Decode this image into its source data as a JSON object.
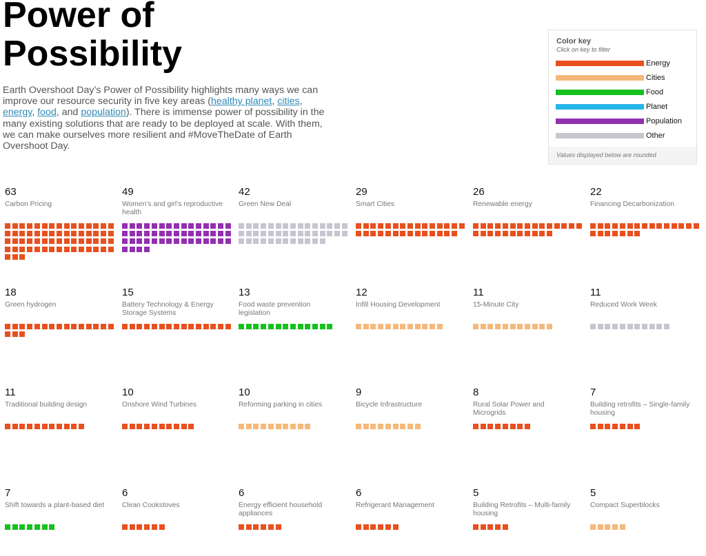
{
  "header": {
    "title": "Power of Possibility",
    "intro_before": "Earth Overshoot Day’s Power of Possibility highlights many ways we can improve our resource security in five key areas (",
    "links": [
      "healthy planet",
      "cities",
      "energy",
      "food",
      "population"
    ],
    "sep1": ", ",
    "sep2": ", ",
    "sep3": ", ",
    "sep4": ", and ",
    "intro_after": "). There is immense power of possibility in the many existing solutions that are ready to be deployed at scale. With them, we can make ourselves more resilient and #MoveTheDate of Earth Overshoot Day."
  },
  "color_key": {
    "title": "Color key",
    "subtitle": "Click on key to filter",
    "footnote": "Values displayed below are rounded",
    "items": [
      {
        "label": "Energy",
        "color": "#e8501e"
      },
      {
        "label": "Cities",
        "color": "#f5b87a"
      },
      {
        "label": "Food",
        "color": "#16c11d"
      },
      {
        "label": "Planet",
        "color": "#27b5e8"
      },
      {
        "label": "Population",
        "color": "#9230b0"
      },
      {
        "label": "Other",
        "color": "#c6c5d0"
      }
    ]
  },
  "chart_data": {
    "type": "waffle",
    "title": "Power of Possibility",
    "unit_note": "Values displayed below are rounded",
    "legend": [
      "Energy",
      "Cities",
      "Food",
      "Planet",
      "Population",
      "Other"
    ],
    "legend_position": "top-right",
    "solutions": [
      {
        "value": 63,
        "label": "Carbon Pricing",
        "category": "Energy"
      },
      {
        "value": 49,
        "label": "Women’s and girl’s reproductive health",
        "category": "Population"
      },
      {
        "value": 42,
        "label": "Green New Deal",
        "category": "Other"
      },
      {
        "value": 29,
        "label": "Smart Cities",
        "category": "Energy"
      },
      {
        "value": 26,
        "label": "Renewable energy",
        "category": "Energy"
      },
      {
        "value": 22,
        "label": "Financing Decarbonization",
        "category": "Energy"
      },
      {
        "value": 18,
        "label": "Green hydrogen",
        "category": "Energy"
      },
      {
        "value": 15,
        "label": "Battery Technology & Energy Storage Systems",
        "category": "Energy"
      },
      {
        "value": 13,
        "label": "Food waste prevention legislation",
        "category": "Food"
      },
      {
        "value": 12,
        "label": "Infill Housing Development",
        "category": "Cities"
      },
      {
        "value": 11,
        "label": "15-Minute City",
        "category": "Cities"
      },
      {
        "value": 11,
        "label": "Reduced Work Week",
        "category": "Other"
      },
      {
        "value": 11,
        "label": "Traditional building design",
        "category": "Energy"
      },
      {
        "value": 10,
        "label": "Onshore Wind Turbines",
        "category": "Energy"
      },
      {
        "value": 10,
        "label": "Reforming parking in cities",
        "category": "Cities"
      },
      {
        "value": 9,
        "label": "Bicycle Infrastructure",
        "category": "Cities"
      },
      {
        "value": 8,
        "label": "Rural Solar Power and Microgrids",
        "category": "Energy"
      },
      {
        "value": 7,
        "label": "Building retrofits – Single-family housing",
        "category": "Energy"
      },
      {
        "value": 7,
        "label": "Shift towards a plant-based diet",
        "category": "Food"
      },
      {
        "value": 6,
        "label": "Clean Cookstoves",
        "category": "Energy"
      },
      {
        "value": 6,
        "label": "Energy efficient household appliances",
        "category": "Energy"
      },
      {
        "value": 6,
        "label": "Refrigerant Management",
        "category": "Energy"
      },
      {
        "value": 5,
        "label": "Building Retrofits – Multi-family housing",
        "category": "Energy"
      },
      {
        "value": 5,
        "label": "Compact Superblocks",
        "category": "Cities"
      }
    ]
  }
}
